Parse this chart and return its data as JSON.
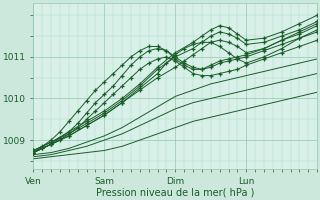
{
  "bg_color": "#cce8dc",
  "plot_bg": "#d8f0e8",
  "line_color": "#1a5c2a",
  "xlabel": "Pression niveau de la mer( hPa )",
  "yticks": [
    1009,
    1010,
    1011
  ],
  "ylim": [
    1008.3,
    1012.3
  ],
  "xlim": [
    0,
    96
  ],
  "xtick_positions": [
    0,
    24,
    48,
    72,
    96
  ],
  "xtick_labels": [
    "Ven",
    "Sam",
    "Dim",
    "Lun",
    ""
  ],
  "figsize": [
    3.2,
    2.0
  ],
  "dpi": 100,
  "series": [
    {
      "x": [
        0,
        6,
        12,
        18,
        24,
        30,
        36,
        42,
        48,
        54,
        60,
        66,
        72,
        78,
        84,
        90,
        96
      ],
      "y": [
        1008.55,
        1008.6,
        1008.65,
        1008.7,
        1008.75,
        1008.85,
        1009.0,
        1009.15,
        1009.3,
        1009.45,
        1009.55,
        1009.65,
        1009.75,
        1009.85,
        1009.95,
        1010.05,
        1010.15
      ],
      "marker": false
    },
    {
      "x": [
        0,
        6,
        12,
        18,
        24,
        30,
        36,
        42,
        48,
        54,
        60,
        66,
        72,
        78,
        84,
        90,
        96
      ],
      "y": [
        1008.6,
        1008.65,
        1008.75,
        1008.85,
        1009.0,
        1009.15,
        1009.35,
        1009.55,
        1009.75,
        1009.9,
        1010.0,
        1010.1,
        1010.2,
        1010.3,
        1010.4,
        1010.5,
        1010.6
      ],
      "marker": false
    },
    {
      "x": [
        0,
        6,
        12,
        18,
        24,
        30,
        36,
        42,
        48,
        54,
        60,
        66,
        72,
        78,
        84,
        90,
        96
      ],
      "y": [
        1008.65,
        1008.7,
        1008.8,
        1008.95,
        1009.1,
        1009.3,
        1009.55,
        1009.8,
        1010.05,
        1010.2,
        1010.35,
        1010.45,
        1010.55,
        1010.65,
        1010.75,
        1010.85,
        1010.95
      ],
      "marker": false
    },
    {
      "x": [
        0,
        3,
        6,
        9,
        12,
        15,
        18,
        21,
        24,
        27,
        30,
        33,
        36,
        39,
        42,
        45,
        48,
        51,
        54,
        57,
        60,
        63,
        66,
        69,
        72,
        78,
        84,
        90,
        96
      ],
      "y": [
        1008.7,
        1008.8,
        1008.9,
        1009.0,
        1009.15,
        1009.3,
        1009.5,
        1009.7,
        1009.9,
        1010.1,
        1010.3,
        1010.5,
        1010.7,
        1010.85,
        1010.95,
        1011.0,
        1010.9,
        1010.75,
        1010.6,
        1010.55,
        1010.55,
        1010.6,
        1010.65,
        1010.7,
        1010.8,
        1010.95,
        1011.1,
        1011.25,
        1011.4
      ],
      "marker": true
    },
    {
      "x": [
        0,
        3,
        6,
        9,
        12,
        15,
        18,
        21,
        24,
        27,
        30,
        33,
        36,
        39,
        42,
        45,
        48,
        51,
        54,
        57,
        60,
        63,
        66,
        69,
        72,
        78,
        84,
        90,
        96
      ],
      "y": [
        1008.7,
        1008.8,
        1008.9,
        1009.05,
        1009.2,
        1009.4,
        1009.65,
        1009.9,
        1010.1,
        1010.3,
        1010.55,
        1010.8,
        1011.0,
        1011.15,
        1011.2,
        1011.15,
        1011.0,
        1010.85,
        1010.75,
        1010.7,
        1010.75,
        1010.85,
        1010.9,
        1010.95,
        1011.0,
        1011.15,
        1011.3,
        1011.45,
        1011.6
      ],
      "marker": true
    },
    {
      "x": [
        0,
        3,
        6,
        9,
        12,
        15,
        18,
        21,
        24,
        27,
        30,
        33,
        36,
        39,
        42,
        45,
        48,
        51,
        54,
        57,
        60,
        63,
        66,
        69,
        72,
        78,
        84,
        90,
        96
      ],
      "y": [
        1008.7,
        1008.85,
        1009.0,
        1009.2,
        1009.45,
        1009.7,
        1009.95,
        1010.2,
        1010.4,
        1010.6,
        1010.8,
        1011.0,
        1011.15,
        1011.25,
        1011.25,
        1011.15,
        1010.95,
        1010.8,
        1010.7,
        1010.7,
        1010.8,
        1010.9,
        1010.95,
        1011.0,
        1011.05,
        1011.2,
        1011.4,
        1011.6,
        1011.8
      ],
      "marker": true
    },
    {
      "x": [
        0,
        6,
        12,
        18,
        24,
        30,
        36,
        42,
        48,
        51,
        54,
        57,
        60,
        63,
        66,
        69,
        72,
        78,
        84,
        90,
        96
      ],
      "y": [
        1008.7,
        1008.9,
        1009.1,
        1009.35,
        1009.6,
        1009.9,
        1010.2,
        1010.5,
        1010.75,
        1010.9,
        1011.05,
        1011.2,
        1011.35,
        1011.4,
        1011.35,
        1011.25,
        1011.1,
        1011.2,
        1011.4,
        1011.55,
        1011.75
      ],
      "marker": true
    },
    {
      "x": [
        0,
        6,
        12,
        18,
        24,
        30,
        36,
        42,
        45,
        48,
        51,
        54,
        57,
        60,
        63,
        66,
        69,
        72,
        78,
        84,
        90,
        96
      ],
      "y": [
        1008.7,
        1008.9,
        1009.1,
        1009.35,
        1009.6,
        1009.9,
        1010.25,
        1010.6,
        1010.85,
        1011.05,
        1011.2,
        1011.3,
        1011.35,
        1011.35,
        1011.25,
        1011.1,
        1010.95,
        1010.85,
        1011.0,
        1011.2,
        1011.45,
        1011.65
      ],
      "marker": true
    },
    {
      "x": [
        0,
        6,
        12,
        18,
        24,
        30,
        36,
        42,
        48,
        54,
        57,
        60,
        63,
        66,
        69,
        72,
        78,
        84,
        90,
        96
      ],
      "y": [
        1008.75,
        1008.95,
        1009.15,
        1009.4,
        1009.65,
        1009.95,
        1010.3,
        1010.7,
        1011.0,
        1011.2,
        1011.35,
        1011.5,
        1011.6,
        1011.55,
        1011.45,
        1011.3,
        1011.35,
        1011.5,
        1011.65,
        1011.85
      ],
      "marker": true
    },
    {
      "x": [
        0,
        6,
        12,
        18,
        24,
        30,
        36,
        42,
        48,
        54,
        57,
        60,
        63,
        66,
        69,
        72,
        78,
        84,
        90,
        96
      ],
      "y": [
        1008.75,
        1008.95,
        1009.2,
        1009.45,
        1009.7,
        1010.0,
        1010.35,
        1010.75,
        1011.1,
        1011.35,
        1011.5,
        1011.65,
        1011.75,
        1011.7,
        1011.55,
        1011.4,
        1011.45,
        1011.6,
        1011.8,
        1012.0
      ],
      "marker": true
    }
  ]
}
